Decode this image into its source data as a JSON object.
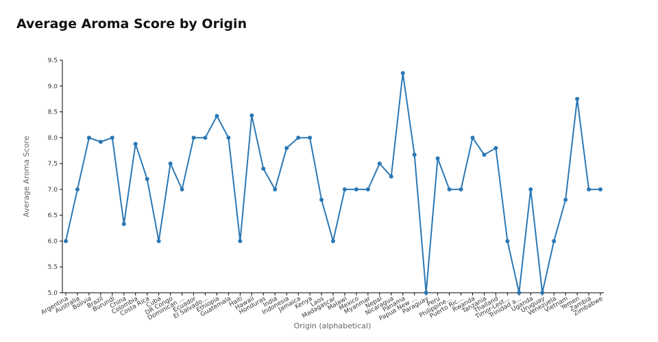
{
  "title": "Average Aroma Score by Origin",
  "colors": {
    "line": "#2a77b4",
    "axis": "#000000",
    "text": "#333333"
  },
  "chart_data": {
    "type": "line",
    "title": "Average Aroma Score by Origin",
    "xlabel": "Origin (alphabetical)",
    "ylabel": "Average Aroma Score",
    "ylim": [
      5.0,
      9.5
    ],
    "yticks": [
      "5.0",
      "5.5",
      "6.0",
      "6.5",
      "7.0",
      "7.5",
      "8.0",
      "8.5",
      "9.0",
      "9.5"
    ],
    "grid": false,
    "legend": "none",
    "markers": true,
    "categories": [
      "Argentina",
      "Australia",
      "Bolivia",
      "Brazil",
      "Burundi",
      "China",
      "Colombia",
      "Costa Rica",
      "Cuba",
      "DR Congo",
      "Dominican …",
      "Ecuador",
      "El Salvado…",
      "Ethiopia",
      "Guatemala",
      "Haiti",
      "Hawaii",
      "Honduras",
      "India",
      "Indonesia",
      "Jamaica",
      "Kenya",
      "Laos",
      "Madagascar",
      "Malawi",
      "Mexico",
      "Myanmar",
      "Nepal",
      "Nicaragua",
      "Panama",
      "Papua New …",
      "Paraguay",
      "Peru",
      "Philippine…",
      "Puerto Ric…",
      "Rwanda",
      "Tanzania",
      "Thailand",
      "Timor-Lest…",
      "Trinidad a…",
      "Uganda",
      "Uruguay",
      "Venezuela",
      "Vietnam",
      "Yemen",
      "Zambia",
      "Zimbabwe"
    ],
    "values": [
      6.0,
      7.0,
      8.0,
      7.92,
      8.0,
      6.33,
      7.88,
      7.2,
      6.0,
      7.5,
      7.0,
      8.0,
      8.0,
      8.42,
      8.0,
      6.0,
      8.43,
      7.4,
      7.0,
      7.8,
      8.0,
      8.0,
      6.8,
      6.0,
      7.0,
      7.0,
      7.0,
      7.5,
      7.25,
      9.25,
      7.67,
      5.0,
      7.6,
      7.0,
      7.0,
      8.0,
      7.67,
      7.8,
      6.0,
      5.0,
      7.0,
      5.0,
      6.0,
      6.8,
      8.75,
      7.0,
      7.0
    ]
  }
}
